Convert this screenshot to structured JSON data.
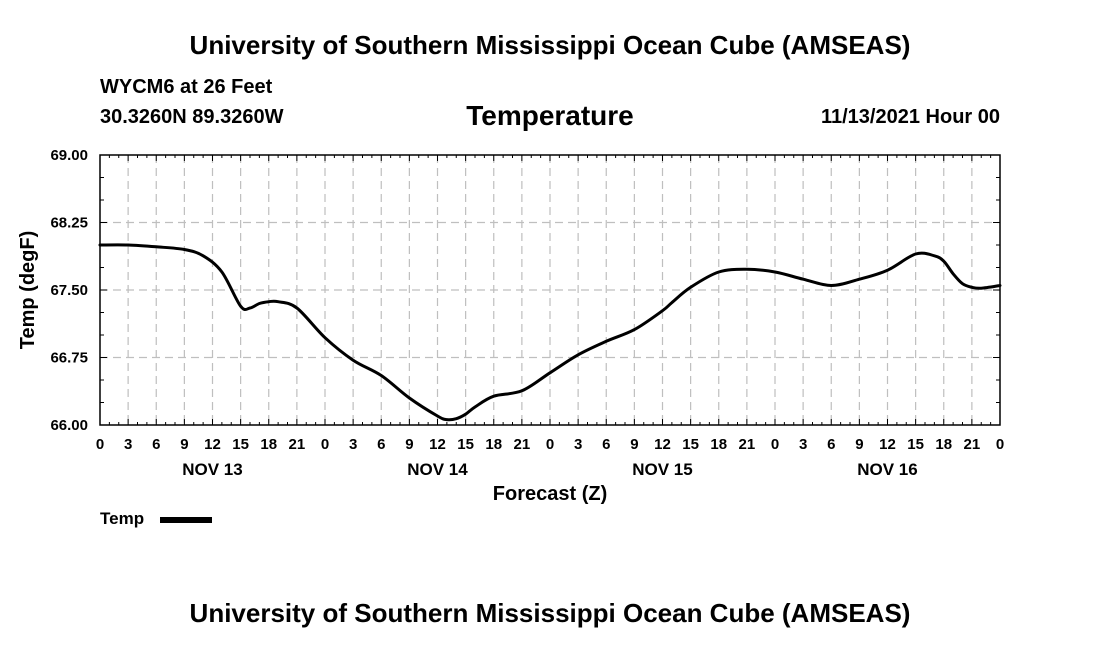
{
  "header": {
    "title": "University of Southern Mississippi Ocean Cube (AMSEAS)",
    "station": "WYCM6 at 26 Feet",
    "coords": "30.3260N  89.3260W",
    "variable": "Temperature",
    "datetime": "11/13/2021 Hour 00"
  },
  "footer": {
    "title": "University of Southern Mississippi Ocean Cube (AMSEAS)"
  },
  "legend": {
    "label": "Temp"
  },
  "chart_data": {
    "type": "line",
    "title": "Temperature",
    "xlabel": "Forecast (Z)",
    "ylabel": "Temp (degF)",
    "xlim": [
      0,
      96
    ],
    "ylim": [
      66.0,
      69.0
    ],
    "grid": true,
    "legend_position": "bottom-left",
    "y_ticks": [
      "69.00",
      "68.25",
      "67.50",
      "66.75",
      "66.00"
    ],
    "y_tick_values": [
      69.0,
      68.25,
      67.5,
      66.75,
      66.0
    ],
    "x_tick_labels": [
      "0",
      "3",
      "6",
      "9",
      "12",
      "15",
      "18",
      "21",
      "0",
      "3",
      "6",
      "9",
      "12",
      "15",
      "18",
      "21",
      "0",
      "3",
      "6",
      "9",
      "12",
      "15",
      "18",
      "21",
      "0",
      "3",
      "6",
      "9",
      "12",
      "15",
      "18",
      "21",
      "0"
    ],
    "day_labels": [
      {
        "label": "NOV 13",
        "hour": 12
      },
      {
        "label": "NOV 14",
        "hour": 36
      },
      {
        "label": "NOV 15",
        "hour": 60
      },
      {
        "label": "NOV 16",
        "hour": 84
      }
    ],
    "series": [
      {
        "name": "Temp",
        "x": [
          0,
          3,
          6,
          9,
          11,
          13,
          15,
          16,
          17,
          18,
          19,
          21,
          24,
          27,
          30,
          33,
          36,
          37,
          38,
          39,
          40,
          42,
          45,
          48,
          51,
          54,
          57,
          60,
          61,
          63,
          66,
          69,
          72,
          75,
          78,
          81,
          84,
          87,
          89,
          90,
          91,
          92,
          93,
          94,
          96
        ],
        "values": [
          68.0,
          68.0,
          67.98,
          67.95,
          67.88,
          67.7,
          67.32,
          67.3,
          67.35,
          67.37,
          67.37,
          67.3,
          66.97,
          66.72,
          66.55,
          66.3,
          66.1,
          66.06,
          66.07,
          66.12,
          66.2,
          66.32,
          66.38,
          66.58,
          66.78,
          66.93,
          67.06,
          67.27,
          67.36,
          67.53,
          67.7,
          67.73,
          67.7,
          67.62,
          67.55,
          67.62,
          67.72,
          67.9,
          67.88,
          67.82,
          67.68,
          67.57,
          67.53,
          67.52,
          67.55
        ]
      }
    ]
  }
}
